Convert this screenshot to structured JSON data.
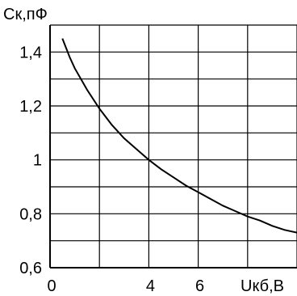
{
  "chart_data": {
    "type": "line",
    "title": "",
    "ylabel": "Ск,пФ",
    "xlabel": "Uкб,В",
    "xlim": [
      0,
      10
    ],
    "ylim": [
      0.6,
      1.5
    ],
    "grid": true,
    "x_ticks": [
      {
        "value": 0,
        "label": "0"
      },
      {
        "value": 4,
        "label": "4"
      },
      {
        "value": 6,
        "label": "6"
      }
    ],
    "y_ticks": [
      {
        "value": 0.6,
        "label": "0,6"
      },
      {
        "value": 0.8,
        "label": "0,8"
      },
      {
        "value": 1.0,
        "label": "1"
      },
      {
        "value": 1.2,
        "label": "1,2"
      },
      {
        "value": 1.4,
        "label": "1,4"
      }
    ],
    "series": [
      {
        "x": [
          0.5,
          0.8,
          1.0,
          1.5,
          2.0,
          2.5,
          3.0,
          3.5,
          4.0,
          4.5,
          5.0,
          5.5,
          6.0,
          6.5,
          7.0,
          7.5,
          8.0,
          8.5,
          9.0,
          9.5,
          10.0
        ],
        "values": [
          1.45,
          1.38,
          1.34,
          1.26,
          1.19,
          1.13,
          1.08,
          1.04,
          1.0,
          0.965,
          0.935,
          0.905,
          0.88,
          0.855,
          0.83,
          0.81,
          0.79,
          0.775,
          0.755,
          0.74,
          0.73
        ]
      }
    ]
  }
}
